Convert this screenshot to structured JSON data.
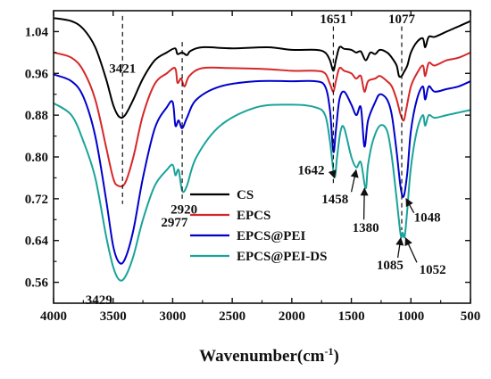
{
  "chart_data": {
    "type": "line",
    "title": "",
    "xlabel": "Wavenumber(cm",
    "xlabel_sup": "-1",
    "xlabel_close": ")",
    "ylabel": "",
    "xlim": [
      4000,
      500
    ],
    "ylim": [
      0.52,
      1.08
    ],
    "x_reversed": true,
    "grid": false,
    "legend_position": "center-right",
    "x_ticks": [
      4000,
      3500,
      3000,
      2500,
      2000,
      1500,
      1000,
      500
    ],
    "x_tick_labels": [
      "4000",
      "3500",
      "3000",
      "2500",
      "2000",
      "1500",
      "1000",
      "500"
    ],
    "y_ticks": [
      0.56,
      0.64,
      0.72,
      0.8,
      0.88,
      0.96,
      1.04
    ],
    "y_tick_labels": [
      "0.56",
      "0.64",
      "0.72",
      "0.80",
      "0.88",
      "0.96",
      "1.04"
    ],
    "series": [
      {
        "name": "CS",
        "color": "#000000",
        "points": [
          [
            4000,
            1.066
          ],
          [
            3850,
            1.06
          ],
          [
            3750,
            1.045
          ],
          [
            3650,
            1.01
          ],
          [
            3560,
            0.95
          ],
          [
            3500,
            0.9
          ],
          [
            3450,
            0.877
          ],
          [
            3400,
            0.88
          ],
          [
            3330,
            0.91
          ],
          [
            3250,
            0.95
          ],
          [
            3150,
            0.985
          ],
          [
            3050,
            1.0
          ],
          [
            2980,
            1.008
          ],
          [
            2960,
            0.997
          ],
          [
            2920,
            1.0
          ],
          [
            2880,
            0.995
          ],
          [
            2850,
            1.003
          ],
          [
            2750,
            1.01
          ],
          [
            2500,
            1.008
          ],
          [
            2200,
            1.01
          ],
          [
            2000,
            1.005
          ],
          [
            1800,
            1.005
          ],
          [
            1720,
            1.0
          ],
          [
            1680,
            0.985
          ],
          [
            1651,
            0.965
          ],
          [
            1630,
            0.985
          ],
          [
            1600,
            1.01
          ],
          [
            1560,
            1.007
          ],
          [
            1500,
            1.005
          ],
          [
            1460,
            1.0
          ],
          [
            1420,
            1.002
          ],
          [
            1380,
            0.985
          ],
          [
            1340,
            1.0
          ],
          [
            1300,
            0.997
          ],
          [
            1260,
            1.005
          ],
          [
            1200,
            1.0
          ],
          [
            1160,
            0.99
          ],
          [
            1120,
            0.975
          ],
          [
            1100,
            0.955
          ],
          [
            1077,
            0.955
          ],
          [
            1060,
            0.962
          ],
          [
            1030,
            0.975
          ],
          [
            1000,
            1.0
          ],
          [
            950,
            1.02
          ],
          [
            900,
            1.027
          ],
          [
            880,
            1.01
          ],
          [
            850,
            1.03
          ],
          [
            800,
            1.03
          ],
          [
            700,
            1.04
          ],
          [
            600,
            1.05
          ],
          [
            500,
            1.06
          ]
        ]
      },
      {
        "name": "EPCS",
        "color": "#d62728",
        "points": [
          [
            4000,
            1.0
          ],
          [
            3850,
            0.99
          ],
          [
            3750,
            0.965
          ],
          [
            3650,
            0.91
          ],
          [
            3560,
            0.82
          ],
          [
            3500,
            0.76
          ],
          [
            3460,
            0.745
          ],
          [
            3400,
            0.75
          ],
          [
            3330,
            0.8
          ],
          [
            3250,
            0.88
          ],
          [
            3150,
            0.94
          ],
          [
            3050,
            0.96
          ],
          [
            2980,
            0.97
          ],
          [
            2960,
            0.942
          ],
          [
            2930,
            0.95
          ],
          [
            2900,
            0.935
          ],
          [
            2860,
            0.955
          ],
          [
            2750,
            0.97
          ],
          [
            2500,
            0.97
          ],
          [
            2200,
            0.968
          ],
          [
            2000,
            0.965
          ],
          [
            1800,
            0.965
          ],
          [
            1720,
            0.96
          ],
          [
            1680,
            0.94
          ],
          [
            1651,
            0.925
          ],
          [
            1630,
            0.945
          ],
          [
            1600,
            0.97
          ],
          [
            1560,
            0.965
          ],
          [
            1500,
            0.96
          ],
          [
            1460,
            0.95
          ],
          [
            1420,
            0.955
          ],
          [
            1390,
            0.925
          ],
          [
            1360,
            0.945
          ],
          [
            1300,
            0.95
          ],
          [
            1260,
            0.955
          ],
          [
            1200,
            0.945
          ],
          [
            1160,
            0.935
          ],
          [
            1120,
            0.91
          ],
          [
            1085,
            0.88
          ],
          [
            1060,
            0.87
          ],
          [
            1040,
            0.89
          ],
          [
            1000,
            0.935
          ],
          [
            950,
            0.96
          ],
          [
            900,
            0.975
          ],
          [
            880,
            0.955
          ],
          [
            850,
            0.98
          ],
          [
            800,
            0.975
          ],
          [
            700,
            0.985
          ],
          [
            600,
            0.99
          ],
          [
            500,
            1.0
          ]
        ]
      },
      {
        "name": "EPCS@PEI",
        "color": "#0000cc",
        "points": [
          [
            4000,
            0.958
          ],
          [
            3850,
            0.945
          ],
          [
            3750,
            0.915
          ],
          [
            3650,
            0.84
          ],
          [
            3560,
            0.72
          ],
          [
            3500,
            0.63
          ],
          [
            3450,
            0.598
          ],
          [
            3400,
            0.605
          ],
          [
            3330,
            0.66
          ],
          [
            3250,
            0.76
          ],
          [
            3150,
            0.855
          ],
          [
            3050,
            0.895
          ],
          [
            3000,
            0.905
          ],
          [
            2977,
            0.86
          ],
          [
            2950,
            0.87
          ],
          [
            2920,
            0.855
          ],
          [
            2880,
            0.875
          ],
          [
            2800,
            0.91
          ],
          [
            2600,
            0.935
          ],
          [
            2300,
            0.945
          ],
          [
            2000,
            0.945
          ],
          [
            1800,
            0.945
          ],
          [
            1720,
            0.935
          ],
          [
            1680,
            0.89
          ],
          [
            1651,
            0.81
          ],
          [
            1630,
            0.85
          ],
          [
            1600,
            0.91
          ],
          [
            1560,
            0.925
          ],
          [
            1500,
            0.9
          ],
          [
            1458,
            0.88
          ],
          [
            1420,
            0.895
          ],
          [
            1390,
            0.82
          ],
          [
            1360,
            0.87
          ],
          [
            1300,
            0.905
          ],
          [
            1260,
            0.92
          ],
          [
            1200,
            0.91
          ],
          [
            1160,
            0.88
          ],
          [
            1120,
            0.81
          ],
          [
            1085,
            0.74
          ],
          [
            1060,
            0.725
          ],
          [
            1030,
            0.77
          ],
          [
            1000,
            0.85
          ],
          [
            950,
            0.91
          ],
          [
            900,
            0.935
          ],
          [
            880,
            0.91
          ],
          [
            850,
            0.935
          ],
          [
            800,
            0.925
          ],
          [
            700,
            0.93
          ],
          [
            600,
            0.935
          ],
          [
            500,
            0.945
          ]
        ]
      },
      {
        "name": "EPCS@PEI-DS",
        "color": "#1aa39a",
        "points": [
          [
            4000,
            0.903
          ],
          [
            3850,
            0.88
          ],
          [
            3750,
            0.83
          ],
          [
            3650,
            0.76
          ],
          [
            3560,
            0.65
          ],
          [
            3500,
            0.59
          ],
          [
            3450,
            0.565
          ],
          [
            3400,
            0.57
          ],
          [
            3330,
            0.61
          ],
          [
            3250,
            0.68
          ],
          [
            3150,
            0.745
          ],
          [
            3050,
            0.775
          ],
          [
            3000,
            0.785
          ],
          [
            2977,
            0.765
          ],
          [
            2950,
            0.775
          ],
          [
            2920,
            0.735
          ],
          [
            2880,
            0.745
          ],
          [
            2800,
            0.8
          ],
          [
            2600,
            0.86
          ],
          [
            2300,
            0.895
          ],
          [
            2000,
            0.9
          ],
          [
            1800,
            0.895
          ],
          [
            1720,
            0.88
          ],
          [
            1680,
            0.83
          ],
          [
            1642,
            0.762
          ],
          [
            1620,
            0.8
          ],
          [
            1590,
            0.85
          ],
          [
            1560,
            0.855
          ],
          [
            1500,
            0.8
          ],
          [
            1458,
            0.78
          ],
          [
            1420,
            0.79
          ],
          [
            1380,
            0.74
          ],
          [
            1360,
            0.785
          ],
          [
            1320,
            0.83
          ],
          [
            1260,
            0.86
          ],
          [
            1200,
            0.85
          ],
          [
            1160,
            0.8
          ],
          [
            1120,
            0.72
          ],
          [
            1085,
            0.65
          ],
          [
            1070,
            0.655
          ],
          [
            1052,
            0.648
          ],
          [
            1030,
            0.7
          ],
          [
            1000,
            0.78
          ],
          [
            950,
            0.85
          ],
          [
            900,
            0.88
          ],
          [
            880,
            0.86
          ],
          [
            850,
            0.88
          ],
          [
            800,
            0.875
          ],
          [
            700,
            0.88
          ],
          [
            600,
            0.885
          ],
          [
            500,
            0.89
          ]
        ]
      }
    ],
    "annotations": [
      {
        "text": "3421",
        "x": 3421,
        "y": 0.97,
        "anchor": "middle"
      },
      {
        "text": "1651",
        "x": 1651,
        "y": 1.065,
        "anchor": "middle"
      },
      {
        "text": "1077",
        "x": 1077,
        "y": 1.065,
        "anchor": "middle"
      },
      {
        "text": "1642",
        "x": 1725,
        "y": 0.775,
        "anchor": "end"
      },
      {
        "text": "1458",
        "x": 1525,
        "y": 0.72,
        "anchor": "end"
      },
      {
        "text": "1380",
        "x": 1380,
        "y": 0.665,
        "anchor": "middle"
      },
      {
        "text": "1048",
        "x": 975,
        "y": 0.685,
        "anchor": "start"
      },
      {
        "text": "1085",
        "x": 1175,
        "y": 0.593,
        "anchor": "middle"
      },
      {
        "text": "1052",
        "x": 930,
        "y": 0.585,
        "anchor": "start"
      },
      {
        "text": "2977",
        "x": 2985,
        "y": 0.675,
        "anchor": "middle"
      },
      {
        "text": "2920",
        "x": 2905,
        "y": 0.7,
        "anchor": "middle"
      },
      {
        "text": "3429",
        "x": 3620,
        "y": 0.527,
        "anchor": "middle"
      }
    ],
    "dashed_markers": [
      {
        "x": 3421,
        "y_from": 1.07,
        "y_to": 0.71
      },
      {
        "x": 2920,
        "y_from": 1.02,
        "y_to": 0.72
      },
      {
        "x": 1651,
        "y_from": 1.05,
        "y_to": 0.75
      },
      {
        "x": 1077,
        "y_from": 1.05,
        "y_to": 0.66
      }
    ],
    "arrows": [
      {
        "from": [
          1660,
          0.773
        ],
        "to": [
          1642,
          0.76
        ]
      },
      {
        "from": [
          1500,
          0.733
        ],
        "to": [
          1460,
          0.775
        ]
      },
      {
        "from": [
          1395,
          0.68
        ],
        "to": [
          1390,
          0.74
        ]
      },
      {
        "from": [
          975,
          0.693
        ],
        "to": [
          1040,
          0.72
        ]
      },
      {
        "from": [
          1110,
          0.607
        ],
        "to": [
          1085,
          0.645
        ]
      },
      {
        "from": [
          950,
          0.598
        ],
        "to": [
          1045,
          0.645
        ]
      }
    ]
  }
}
